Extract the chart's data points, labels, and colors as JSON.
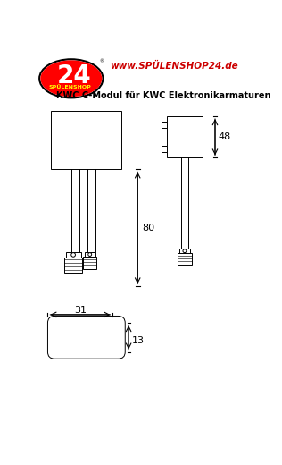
{
  "bg_color": "#ffffff",
  "title_text": "KWC C-Modul für KWC Elektronikarmaturen",
  "website_text": "www.SPÜLENSHOP24.de",
  "website_color": "#cc0000",
  "title_fontsize": 7.0,
  "line_color": "#000000",
  "dim_80": "80",
  "dim_48": "48",
  "dim_31": "31",
  "dim_13": "13",
  "lw": 0.7
}
